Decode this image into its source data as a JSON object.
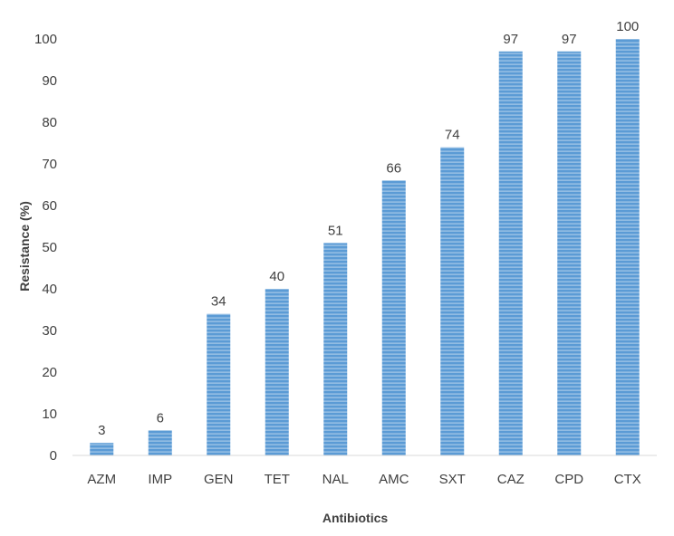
{
  "chart_data": {
    "type": "bar",
    "title": "",
    "xlabel": "Antibiotics",
    "ylabel": "Resistance (%)",
    "categories": [
      "AZM",
      "IMP",
      "GEN",
      "TET",
      "NAL",
      "AMC",
      "SXT",
      "CAZ",
      "CPD",
      "CTX"
    ],
    "values": [
      3,
      6,
      34,
      40,
      51,
      66,
      74,
      97,
      97,
      100
    ],
    "data_labels": [
      "3",
      "6",
      "34",
      "40",
      "51",
      "66",
      "74",
      "97",
      "97",
      "100"
    ],
    "ylim": [
      0,
      100
    ],
    "yticks": [
      0,
      10,
      20,
      30,
      40,
      50,
      60,
      70,
      80,
      90,
      100
    ],
    "grid": false,
    "legend": "none",
    "colors": {
      "bar_fill": "#5b9bd5",
      "bar_stripe": "#ffffff",
      "axis_line": "#d9d9d9",
      "text": "#404040"
    }
  }
}
